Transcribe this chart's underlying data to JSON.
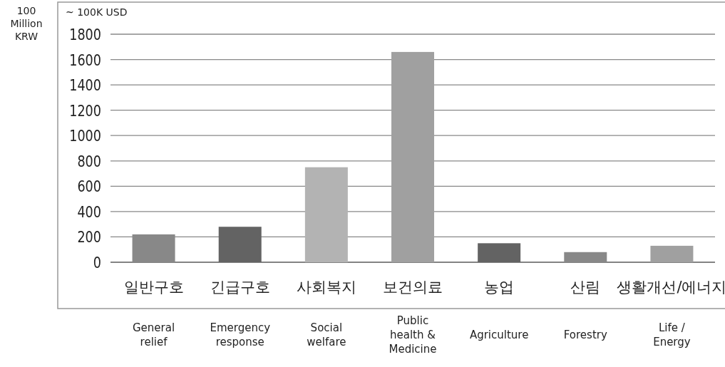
{
  "chart_data": {
    "type": "bar",
    "ylabel": "100 Million KRW",
    "categories": [
      "일반구호",
      "긴급구호",
      "사회복지",
      "보건의료",
      "농업",
      "산림",
      "생활개선/에너지"
    ],
    "values": [
      220,
      280,
      750,
      1660,
      150,
      80,
      130
    ],
    "colors": [
      "#888888",
      "#636363",
      "#b3b3b3",
      "#a0a0a0",
      "#636363",
      "#888888",
      "#a0a0a0"
    ],
    "ylim": [
      0,
      1800
    ],
    "yticks": [
      0,
      200,
      400,
      600,
      800,
      1000,
      1200,
      1400,
      1600,
      1800
    ],
    "grid": "y",
    "annotations": [
      "~ 100K USD",
      "General relief",
      "Emergency response",
      "Social welfare",
      "Public health & Medicine",
      "Agriculture",
      "Forestry",
      "Life / Energy"
    ]
  }
}
